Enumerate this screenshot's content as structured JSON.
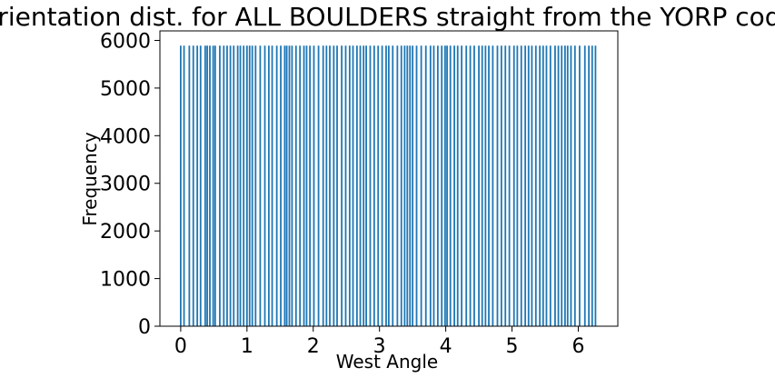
{
  "chart_data": {
    "type": "bar",
    "title": "Orientation dist. for ALL BOULDERS straight from the YORP code",
    "xlabel": "West Angle",
    "ylabel": "Frequency",
    "xlim": [
      -0.314,
      6.597
    ],
    "ylim": [
      0,
      6200
    ],
    "xticks": [
      0,
      1,
      2,
      3,
      4,
      5,
      6
    ],
    "yticks": [
      0,
      1000,
      2000,
      3000,
      4000,
      5000,
      6000
    ],
    "bar_color": "#1f77b4",
    "grid": false,
    "legend": "none",
    "series": [
      {
        "x": [
          0.0,
          0.05,
          0.13,
          0.19,
          0.25,
          0.3,
          0.37,
          0.4,
          0.44,
          0.49,
          0.52,
          0.59,
          0.65,
          0.7,
          0.75,
          0.8,
          0.86,
          0.9,
          0.95,
          1.0,
          1.04,
          1.08,
          1.13,
          1.2,
          1.27,
          1.33,
          1.38,
          1.45,
          1.51,
          1.57,
          1.6,
          1.64,
          1.68,
          1.74,
          1.8,
          1.86,
          1.9,
          1.95,
          2.01,
          2.08,
          2.15,
          2.2,
          2.25,
          2.31,
          2.36,
          2.43,
          2.49,
          2.55,
          2.6,
          2.66,
          2.71,
          2.76,
          2.8,
          2.86,
          2.92,
          2.98,
          3.04,
          3.1,
          3.14,
          3.2,
          3.27,
          3.33,
          3.38,
          3.42,
          3.46,
          3.5,
          3.56,
          3.63,
          3.7,
          3.77,
          3.82,
          3.88,
          3.94,
          3.99,
          4.02,
          4.07,
          4.13,
          4.18,
          4.24,
          4.31,
          4.37,
          4.43,
          4.5,
          4.55,
          4.6,
          4.65,
          4.71,
          4.78,
          4.84,
          4.9,
          4.96,
          5.03,
          5.08,
          5.14,
          5.2,
          5.25,
          5.3,
          5.36,
          5.42,
          5.47,
          5.52,
          5.58,
          5.65,
          5.7,
          5.75,
          5.8,
          5.84,
          5.89,
          5.95,
          6.02,
          6.1,
          6.16,
          6.21,
          6.26
        ],
        "value": 5890
      }
    ]
  }
}
